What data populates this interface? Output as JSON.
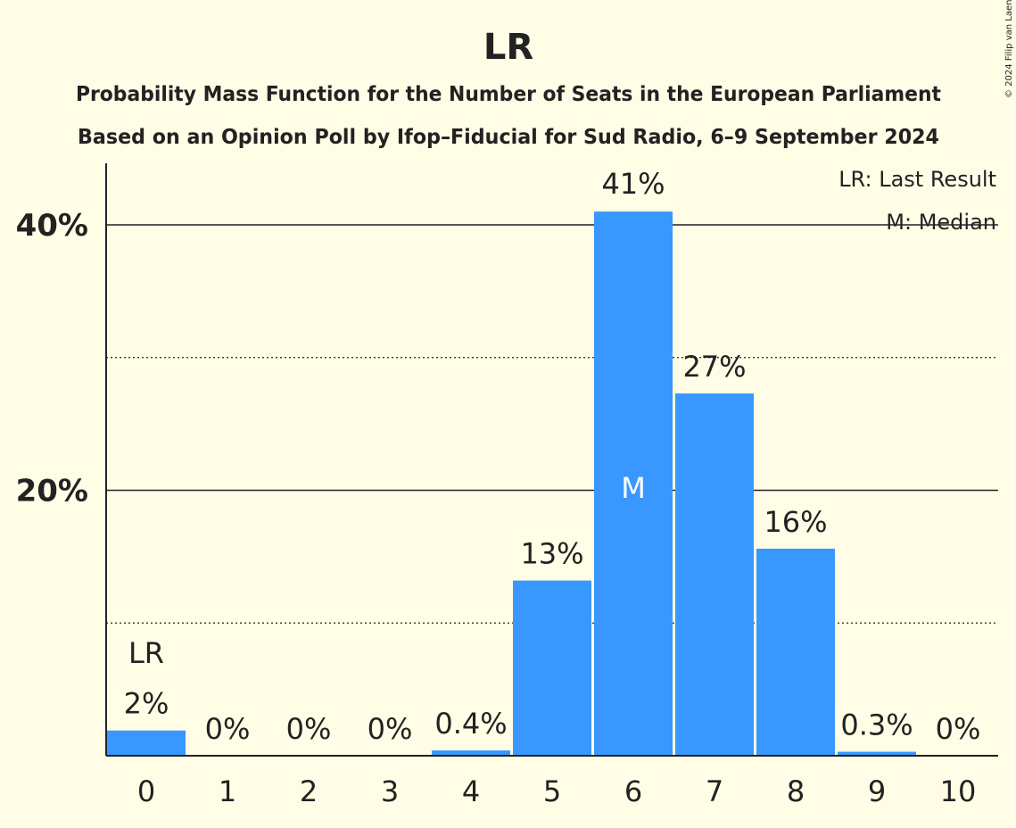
{
  "copyright": "© 2024 Filip van Laenen",
  "chart_data": {
    "type": "bar",
    "title": "LR",
    "subtitle_1": "Probability Mass Function for the Number of Seats in the European Parliament",
    "subtitle_2": "Based on an Opinion Poll by Ifop–Fiducial for Sud Radio, 6–9 September 2024",
    "categories": [
      "0",
      "1",
      "2",
      "3",
      "4",
      "5",
      "6",
      "7",
      "8",
      "9",
      "10"
    ],
    "values": [
      1.9,
      0,
      0,
      0,
      0.4,
      13.2,
      41.0,
      27.3,
      15.6,
      0.3,
      0
    ],
    "value_labels": [
      "2%",
      "0%",
      "0%",
      "0%",
      "0.4%",
      "13%",
      "41%",
      "27%",
      "16%",
      "0.3%",
      "0%"
    ],
    "ylim": [
      0,
      45
    ],
    "yticks": [
      {
        "value": 20,
        "label": "20%"
      },
      {
        "value": 40,
        "label": "40%"
      }
    ],
    "minor_gridlines": [
      10,
      30
    ],
    "last_result_index": 0,
    "median_index": 6,
    "last_result_marker": "LR",
    "median_marker": "M",
    "legend": {
      "position": "top-right",
      "entries": [
        "LR: Last Result",
        "M: Median"
      ]
    },
    "bar_color": "#3898FF",
    "text_color": "#222222"
  }
}
